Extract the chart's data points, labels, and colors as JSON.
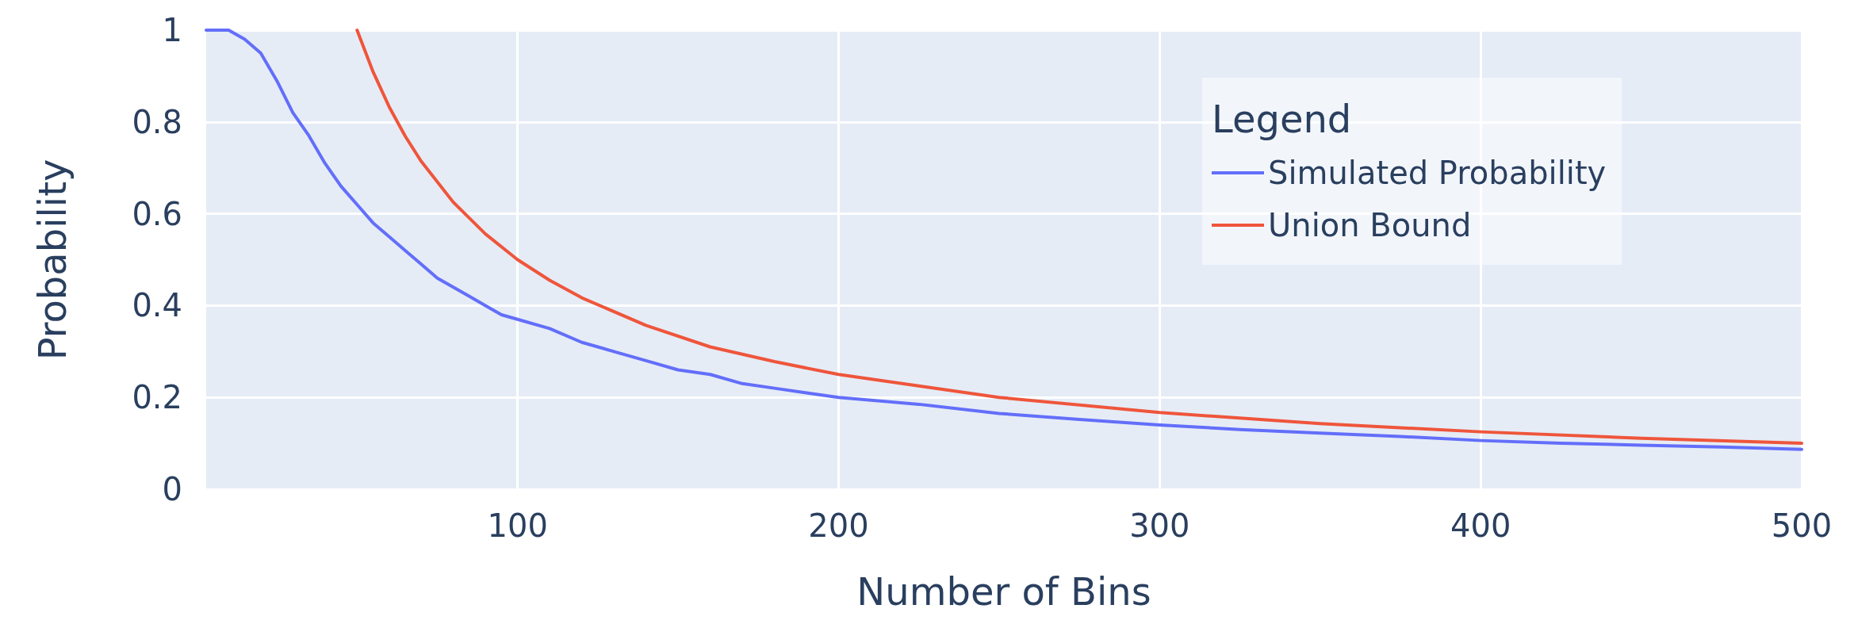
{
  "chart_data": {
    "type": "line",
    "xlabel": "Number of Bins",
    "ylabel": "Probability",
    "legend_title": "Legend",
    "legend": "top right",
    "grid": true,
    "marker": "none",
    "line_style": "solid",
    "xlim": [
      3,
      500
    ],
    "xticks": [
      100,
      200,
      300,
      400,
      500
    ],
    "ylim": [
      0,
      1
    ],
    "yticks": [
      0,
      0.2,
      0.4,
      0.6,
      0.8,
      1
    ],
    "series": [
      {
        "name": "Simulated Probability",
        "color": "#636efa",
        "x": [
          3,
          10,
          15,
          20,
          25,
          30,
          35,
          40,
          45,
          50,
          55,
          60,
          65,
          70,
          75,
          80,
          85,
          90,
          95,
          100,
          110,
          120,
          130,
          140,
          150,
          160,
          170,
          180,
          190,
          200,
          225,
          250,
          275,
          300,
          325,
          350,
          375,
          400,
          425,
          450,
          475,
          500
        ],
        "values": [
          1,
          1,
          0.98,
          0.95,
          0.89,
          0.82,
          0.77,
          0.71,
          0.66,
          0.62,
          0.58,
          0.55,
          0.52,
          0.49,
          0.46,
          0.44,
          0.42,
          0.4,
          0.38,
          0.37,
          0.35,
          0.32,
          0.3,
          0.28,
          0.26,
          0.25,
          0.23,
          0.22,
          0.21,
          0.2,
          0.185,
          0.165,
          0.152,
          0.14,
          0.13,
          0.122,
          0.115,
          0.106,
          0.1,
          0.096,
          0.092,
          0.087
        ]
      },
      {
        "name": "Union Bound",
        "color": "#ef553b",
        "x": [
          50,
          55,
          60,
          65,
          70,
          80,
          90,
          100,
          110,
          120,
          140,
          160,
          180,
          200,
          250,
          300,
          350,
          400,
          450,
          500
        ],
        "values": [
          1,
          0.909,
          0.833,
          0.769,
          0.714,
          0.625,
          0.556,
          0.5,
          0.455,
          0.417,
          0.357,
          0.31,
          0.278,
          0.25,
          0.2,
          0.167,
          0.143,
          0.125,
          0.111,
          0.1
        ]
      }
    ]
  }
}
